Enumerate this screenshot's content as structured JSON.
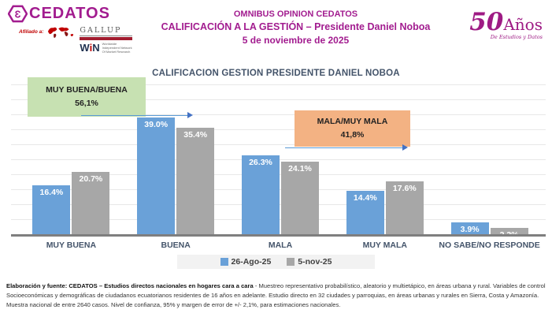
{
  "header": {
    "brand": "CEDATOS",
    "affiliate_label": "Afiliado a:",
    "gallup": "GALLUP",
    "win_w": "W",
    "win_i": "i",
    "win_n": "N",
    "win_sub1": "Worldwide",
    "win_sub2": "Independent Network",
    "win_sub3": "Of Market Research",
    "title_line1": "OMNIBUS OPINION CEDATOS",
    "title_line2": "CALIFICACIÓN A LA GESTIÓN – Presidente Daniel Noboa",
    "title_line3": "5 de noviembre de 2025",
    "anniversary_number": "50",
    "anniversary_word": "Años",
    "anniversary_tagline": "De Estudios y Datos",
    "brand_color": "#A21C8F"
  },
  "chart_data": {
    "type": "bar",
    "title": "CALIFICACION GESTION PRESIDENTE DANIEL NOBOA",
    "categories": [
      "MUY BUENA",
      "BUENA",
      "MALA",
      "MUY MALA",
      "NO SABE/NO RESPONDE"
    ],
    "series": [
      {
        "name": "26-Ago-25",
        "color": "#6AA1D8",
        "values": [
          16.4,
          39.0,
          26.3,
          14.4,
          3.9
        ],
        "labels": [
          "16.4%",
          "39.0%",
          "26.3%",
          "14.4%",
          "3.9%"
        ]
      },
      {
        "name": "5-nov-25",
        "color": "#A7A7A7",
        "values": [
          20.7,
          35.4,
          24.1,
          17.6,
          2.2
        ],
        "labels": [
          "20.7%",
          "35.4%",
          "24.1%",
          "17.6%",
          "2.2%"
        ]
      }
    ],
    "ylim": [
      0,
      50
    ],
    "grid": true,
    "legend_position": "bottom",
    "annotations": [
      {
        "label": "MUY BUENA/BUENA",
        "value": "56,1%",
        "color": "#C7E1B2"
      },
      {
        "label": "MALA/MUY MALA",
        "value": "41,8%",
        "color": "#F3B283"
      }
    ]
  },
  "footer": {
    "bold": "Elaboración y fuente: CEDATOS – Estudios directos nacionales en hogares cara a cara",
    "rest": " - Muestreo representativo probabilístico, aleatorio y multietápico, en áreas urbana y rural.  Variables de control Socioeconómicas y demográficas de ciudadanos ecuatorianos residentes de 16 años en adelante. Estudio directo en 32 ciudades y parroquias, en áreas urbanas y rurales en Sierra, Costa y Amazonía. Muestra nacional de entre 2640 casos. Nivel de confianza, 95% y margen  de error de +/- 2,1%, para estimaciones nacionales."
  }
}
